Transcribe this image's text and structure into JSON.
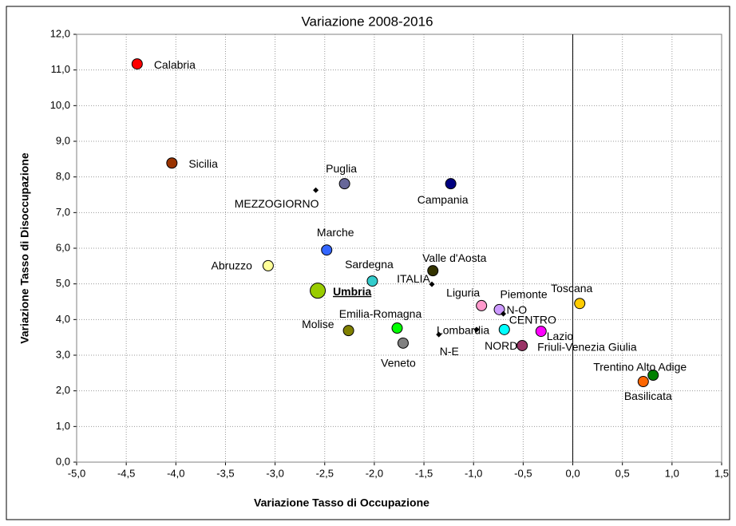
{
  "chart_data": {
    "type": "scatter",
    "title": "Variazione 2008-2016",
    "xlabel": "Variazione Tasso di Occupazione",
    "ylabel": "Variazione Tasso di Disoccupazione",
    "xlim": [
      -5,
      1.5
    ],
    "ylim": [
      0,
      12
    ],
    "xticks": [
      {
        "value": -5,
        "label": "-5,0"
      },
      {
        "value": -4.5,
        "label": "-4,5"
      },
      {
        "value": -4,
        "label": "-4,0"
      },
      {
        "value": -3.5,
        "label": "-3,5"
      },
      {
        "value": -3,
        "label": "-3,0"
      },
      {
        "value": -2.5,
        "label": "-2,5"
      },
      {
        "value": -2,
        "label": "-2,0"
      },
      {
        "value": -1.5,
        "label": "-1,5"
      },
      {
        "value": -1,
        "label": "-1,0"
      },
      {
        "value": -0.5,
        "label": "-0,5"
      },
      {
        "value": 0,
        "label": "0,0"
      },
      {
        "value": 0.5,
        "label": "0,5"
      },
      {
        "value": 1,
        "label": "1,0"
      },
      {
        "value": 1.5,
        "label": "1,5"
      }
    ],
    "yticks": [
      {
        "value": 0,
        "label": "0,0"
      },
      {
        "value": 1,
        "label": "1,0"
      },
      {
        "value": 2,
        "label": "2,0"
      },
      {
        "value": 3,
        "label": "3,0"
      },
      {
        "value": 4,
        "label": "4,0"
      },
      {
        "value": 5,
        "label": "5,0"
      },
      {
        "value": 6,
        "label": "6,0"
      },
      {
        "value": 7,
        "label": "7,0"
      },
      {
        "value": 8,
        "label": "8,0"
      },
      {
        "value": 9,
        "label": "9,0"
      },
      {
        "value": 10,
        "label": "10,0"
      },
      {
        "value": 11,
        "label": "11,0"
      },
      {
        "value": 12,
        "label": "12,0"
      }
    ],
    "grid": true,
    "points": [
      {
        "name": "Calabria",
        "x": -4.39,
        "y": 11.17,
        "color": "#ff0000",
        "marker": "circle"
      },
      {
        "name": "Sicilia",
        "x": -4.04,
        "y": 8.39,
        "color": "#993300",
        "marker": "circle"
      },
      {
        "name": "Puglia",
        "x": -2.3,
        "y": 7.81,
        "color": "#666699",
        "marker": "circle"
      },
      {
        "name": "MEZZOGIORNO",
        "x": -2.59,
        "y": 7.63,
        "color": "#000000",
        "marker": "diamond"
      },
      {
        "name": "Campania",
        "x": -1.23,
        "y": 7.81,
        "color": "#000080",
        "marker": "circle"
      },
      {
        "name": "Marche",
        "x": -2.48,
        "y": 5.95,
        "color": "#3366ff",
        "marker": "circle"
      },
      {
        "name": "Abruzzo",
        "x": -3.07,
        "y": 5.51,
        "color": "#ffff99",
        "marker": "circle"
      },
      {
        "name": "Sardegna",
        "x": -2.02,
        "y": 5.08,
        "color": "#33cccc",
        "marker": "circle"
      },
      {
        "name": "Valle d'Aosta",
        "x": -1.41,
        "y": 5.37,
        "color": "#333300",
        "marker": "circle"
      },
      {
        "name": "ITALIA",
        "x": -1.42,
        "y": 4.99,
        "color": "#000000",
        "marker": "diamond"
      },
      {
        "name": "Umbria",
        "x": -2.57,
        "y": 4.81,
        "color": "#99cc00",
        "marker": "circle",
        "highlight": true
      },
      {
        "name": "Liguria",
        "x": -0.92,
        "y": 4.39,
        "color": "#ff99cc",
        "marker": "circle"
      },
      {
        "name": "Piemonte",
        "x": -0.74,
        "y": 4.28,
        "color": "#cc99ff",
        "marker": "circle"
      },
      {
        "name": "N-O",
        "x": -0.7,
        "y": 4.16,
        "color": "#000000",
        "marker": "diamond"
      },
      {
        "name": "Toscana",
        "x": 0.07,
        "y": 4.45,
        "color": "#ffcc00",
        "marker": "circle"
      },
      {
        "name": "Molise",
        "x": -2.26,
        "y": 3.69,
        "color": "#808000",
        "marker": "circle"
      },
      {
        "name": "Emilia-Romagna",
        "x": -1.77,
        "y": 3.76,
        "color": "#00ff00",
        "marker": "circle"
      },
      {
        "name": "Veneto",
        "x": -1.71,
        "y": 3.34,
        "color": "#808080",
        "marker": "circle"
      },
      {
        "name": "Lombardia",
        "x": -0.97,
        "y": 3.72,
        "color": "#000000",
        "marker": "diamond"
      },
      {
        "name": "N-E",
        "x": -1.35,
        "y": 3.58,
        "color": "#000000",
        "marker": "diamond"
      },
      {
        "name": "CENTRO",
        "x": -0.69,
        "y": 3.72,
        "color": "#00ffff",
        "marker": "circle"
      },
      {
        "name": "Lazio",
        "x": -0.32,
        "y": 3.67,
        "color": "#ff00ff",
        "marker": "circle"
      },
      {
        "name": "NORD",
        "x": -0.55,
        "y": 3.28,
        "color": "#000000",
        "marker": "diamond"
      },
      {
        "name": "Friuli-Venezia Giulia",
        "x": -0.51,
        "y": 3.27,
        "color": "#993366",
        "marker": "circle"
      },
      {
        "name": "Trentino Alto Adige",
        "x": 0.81,
        "y": 2.44,
        "color": "#008000",
        "marker": "circle"
      },
      {
        "name": "Basilicata",
        "x": 0.71,
        "y": 2.26,
        "color": "#ff6600",
        "marker": "circle"
      }
    ]
  }
}
